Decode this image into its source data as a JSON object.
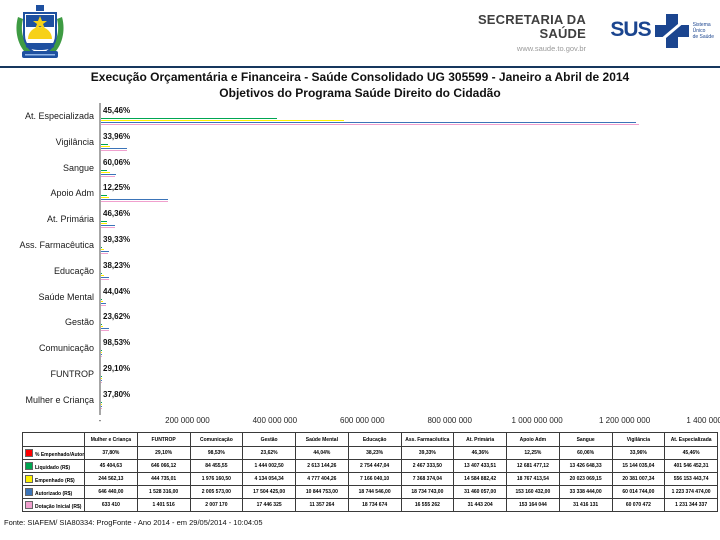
{
  "header": {
    "org_line1": "SECRETARIA DA",
    "org_line2": "SAÚDE",
    "website": "www.saude.to.gov.br",
    "sus_label": "SUS",
    "sus_tagline_lines": [
      "Sistema",
      "Único",
      "de Saúde"
    ]
  },
  "title": {
    "line1": "Execução Orçamentária e Financeira - Saúde Consolidado UG 305599 - Janeiro a Abril de 2014",
    "line2": "Objetivos do Programa Saúde Direito do Cidadão"
  },
  "chart_data": {
    "type": "bar",
    "orientation": "horizontal",
    "title": "Objetivos do Programa Saúde Direito do Cidadão",
    "categories": [
      "At. Especializada",
      "Vigilância",
      "Sangue",
      "Apoio Adm",
      "At. Primária",
      "Ass. Farmacêutica",
      "Educação",
      "Saúde Mental",
      "Gestão",
      "Comunicação",
      "FUNTROP",
      "Mulher e Criança"
    ],
    "pct_series_name": "% Empenhado/Autorizado",
    "pct_color": "#ff0000",
    "pct_labels": [
      "45,46%",
      "33,96%",
      "60,06%",
      "12,25%",
      "46,36%",
      "39,33%",
      "38,23%",
      "44,04%",
      "23,62%",
      "98,53%",
      "29,10%",
      "37,80%"
    ],
    "series": [
      {
        "name": "Liquidado (R$)",
        "color": "#00a651",
        "values": [
          401546452.31,
          15144035.04,
          13426648.33,
          12681477.12,
          13407433.51,
          2467333.5,
          2754447.04,
          2613144.26,
          1444002.5,
          84455.55,
          646066.12,
          45404.63
        ]
      },
      {
        "name": "Empenhado (R$)",
        "color": "#fff200",
        "values": [
          556153443.74,
          20381007.34,
          20023069.15,
          18767413.54,
          14584882.42,
          7368374.04,
          7166040.1,
          4777404.26,
          4134054.34,
          1976160.5,
          444735.01,
          244562.13
        ]
      },
      {
        "name": "Autorizado (R$)",
        "color": "#3b74b8",
        "values": [
          1223374474.0,
          60014744.0,
          33338444.0,
          153160432.0,
          31460057.0,
          18734743.0,
          18744546.0,
          10844753.0,
          17504425.0,
          2005573.0,
          1528316.0,
          646440.0
        ]
      },
      {
        "name": "Dotação Inicial (R$)",
        "color": "#f0a0ce",
        "values": [
          1231344337,
          60070472,
          31416131,
          153164044,
          31443204,
          16555262,
          18734674,
          11357264,
          17446325,
          2007170,
          1401516,
          633410
        ]
      }
    ],
    "xlim": [
      0,
      1400000000
    ],
    "x_ticks": [
      "-",
      "200 000 000",
      "400 000 000",
      "600 000 000",
      "800 000 000",
      "1 000 000 000",
      "1 200 000 000",
      "1 400 000 000"
    ],
    "grid": false,
    "legend_position": "table-below"
  },
  "table": {
    "columns": [
      "Mulher e Criança",
      "FUNTROP",
      "Comunicação",
      "Gestão",
      "Saúde Mental",
      "Educação",
      "Ass. Farmacêutica",
      "At. Primária",
      "Apoio Adm",
      "Sangue",
      "Vigilância",
      "At. Especializada"
    ],
    "rows": [
      {
        "label": "% Empenhado/Autorizado",
        "key_color": "#ff0000",
        "values": [
          "37,80%",
          "29,10%",
          "98,53%",
          "23,62%",
          "44,04%",
          "38,23%",
          "39,33%",
          "46,36%",
          "12,25%",
          "60,06%",
          "33,96%",
          "45,46%"
        ]
      },
      {
        "label": "Liquidado (R$)",
        "key_color": "#00a651",
        "values": [
          "45 404,63",
          "646 066,12",
          "84 455,55",
          "1 444 002,50",
          "2 613 144,26",
          "2 754 447,04",
          "2 467 333,50",
          "13 407 433,51",
          "12 681 477,12",
          "13 426 648,33",
          "15 144 035,04",
          "401 546 452,31"
        ]
      },
      {
        "label": "Empenhado (R$)",
        "key_color": "#fff200",
        "values": [
          "244 562,13",
          "444 735,01",
          "1 976 160,50",
          "4 134 054,34",
          "4 777 404,26",
          "7 166 040,10",
          "7 368 374,04",
          "14 584 882,42",
          "18 767 413,54",
          "20 023 069,15",
          "20 381 007,34",
          "556 153 443,74"
        ]
      },
      {
        "label": "Autorizado (R$)",
        "key_color": "#3b74b8",
        "values": [
          "646 440,00",
          "1 528 316,00",
          "2 005 573,00",
          "17 504 425,00",
          "10 844 753,00",
          "18 744 546,00",
          "18 734 743,00",
          "31 460 057,00",
          "153 160 432,00",
          "33 338 444,00",
          "60 014 744,00",
          "1 223 374 474,00"
        ]
      },
      {
        "label": "Dotação Inicial (R$)",
        "key_color": "#f0a0ce",
        "values": [
          "633 410",
          "1 401 516",
          "2 007 170",
          "17 446 325",
          "11 357 264",
          "18 734 674",
          "16 555 262",
          "31 443 204",
          "153 164 044",
          "31 416 131",
          "60 070 472",
          "1 231 344 337"
        ]
      }
    ]
  },
  "footer": {
    "source": "Fonte: SIAFEM/ SIA80334: ProgFonte - Ano 2014 - em 29/05/2014 - 10:04:05"
  }
}
